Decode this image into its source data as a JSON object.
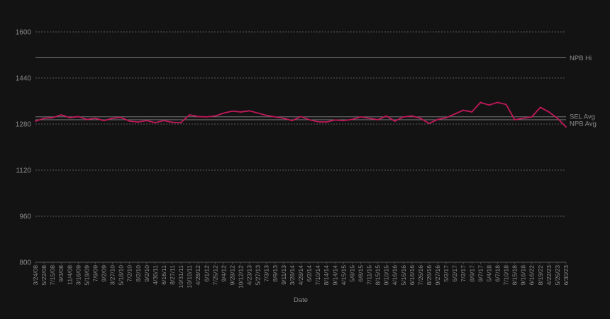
{
  "chart_data": {
    "type": "line",
    "title": "",
    "xlabel": "Date",
    "ylabel": "",
    "ylim": [
      800,
      1600
    ],
    "yticks": [
      800,
      960,
      1120,
      1280,
      1440,
      1600
    ],
    "grid": "horizontal dotted",
    "colors": {
      "background": "#131313",
      "grid": "#9a9a9a",
      "series": "#c2185b",
      "reference": "#9a9a9a",
      "text": "#8a8a8a"
    },
    "xtick_labels": [
      "3/24/08",
      "5/22/08",
      "7/15/08",
      "9/3/08",
      "11/4/08",
      "3/16/09",
      "5/19/09",
      "7/9/09",
      "9/2/09",
      "3/27/10",
      "5/18/10",
      "7/2/10",
      "8/2/10",
      "9/2/10",
      "4/30/11",
      "6/16/11",
      "8/27/11",
      "10/31/11",
      "10/10/11",
      "4/28/12",
      "6/1/12",
      "7/25/12",
      "9/4/12",
      "9/28/12",
      "10/12/12",
      "4/23/13",
      "5/27/13",
      "7/3/13",
      "8/9/13",
      "9/11/13",
      "3/28/14",
      "4/28/14",
      "6/2/14",
      "7/10/14",
      "8/14/14",
      "9/14/14",
      "4/15/15",
      "5/8/15",
      "6/8/15",
      "7/11/15",
      "8/15/15",
      "9/10/15",
      "4/16/16",
      "5/16/16",
      "6/16/16",
      "7/26/16",
      "8/26/16",
      "9/27/16",
      "5/2/17",
      "6/2/17",
      "7/2/17",
      "8/9/17",
      "9/7/17",
      "5/4/18",
      "6/7/18",
      "7/10/18",
      "8/15/18",
      "9/16/18",
      "6/16/22",
      "8/19/22",
      "4/22/23",
      "5/26/23",
      "6/30/23"
    ],
    "reference_lines": [
      {
        "name": "NPB Hi",
        "value": 1510
      },
      {
        "name": "SEL Avg",
        "value": 1305
      },
      {
        "name": "NPB Avg",
        "value": 1295
      }
    ],
    "series": [
      {
        "name": "",
        "x": [
          "3/24/08",
          "5/22/08",
          "7/15/08",
          "9/3/08",
          "11/4/08",
          "3/16/09",
          "5/19/09",
          "7/9/09",
          "9/2/09",
          "3/27/10",
          "5/18/10",
          "7/2/10",
          "8/2/10",
          "9/2/10",
          "4/30/11",
          "6/16/11",
          "8/27/11",
          "10/31/11",
          "10/10/11",
          "4/28/12",
          "6/1/12",
          "7/25/12",
          "9/4/12",
          "9/28/12",
          "10/12/12",
          "4/23/13",
          "5/27/13",
          "7/3/13",
          "8/9/13",
          "9/11/13",
          "3/28/14",
          "4/28/14",
          "6/2/14",
          "7/10/14",
          "8/14/14",
          "9/14/14",
          "4/15/15",
          "5/8/15",
          "6/8/15",
          "7/11/15",
          "8/15/15",
          "9/10/15",
          "4/16/16",
          "5/16/16",
          "6/16/16",
          "7/26/16",
          "8/26/16",
          "9/27/16",
          "5/2/17",
          "6/2/17",
          "7/2/17",
          "8/9/17",
          "9/7/17",
          "5/4/18",
          "6/7/18",
          "7/10/18",
          "8/15/18",
          "9/16/18",
          "6/16/22",
          "8/19/22",
          "4/22/23",
          "5/26/23",
          "6/30/23"
        ],
        "values": [
          1290,
          1300,
          1302,
          1312,
          1302,
          1306,
          1296,
          1300,
          1292,
          1300,
          1303,
          1290,
          1287,
          1292,
          1285,
          1292,
          1286,
          1285,
          1312,
          1306,
          1305,
          1308,
          1318,
          1325,
          1322,
          1326,
          1318,
          1310,
          1305,
          1300,
          1292,
          1306,
          1295,
          1288,
          1287,
          1294,
          1292,
          1296,
          1305,
          1300,
          1295,
          1308,
          1290,
          1305,
          1308,
          1300,
          1282,
          1296,
          1302,
          1315,
          1328,
          1322,
          1355,
          1346,
          1355,
          1348,
          1295,
          1300,
          1305,
          1338,
          1322,
          1300,
          1270
        ]
      }
    ]
  }
}
